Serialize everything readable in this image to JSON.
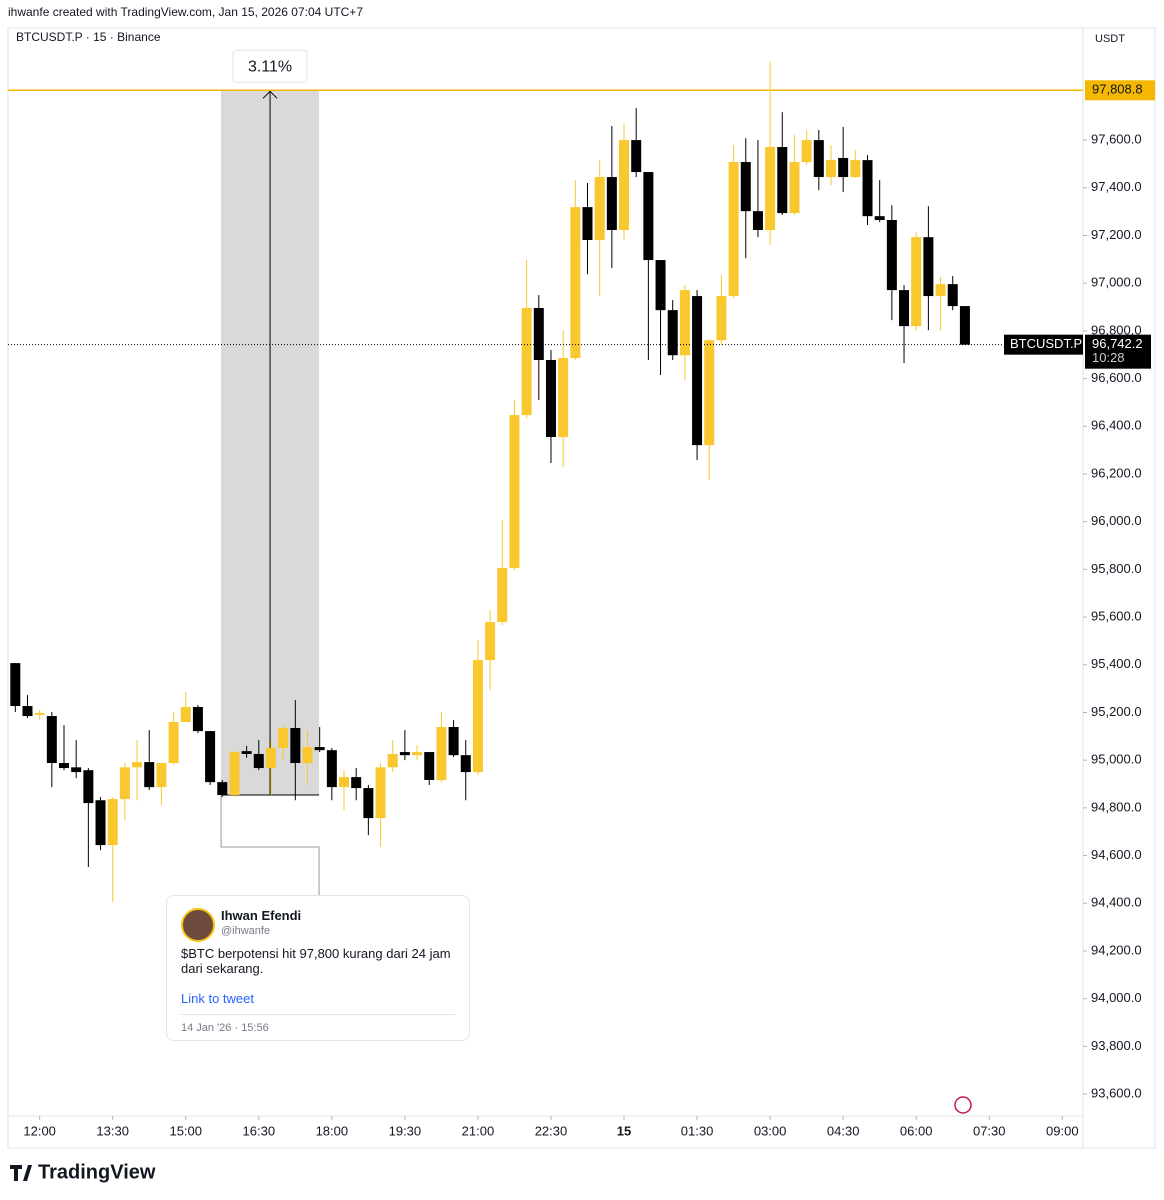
{
  "chart_data": {
    "type": "candlestick",
    "attribution": "ihwanfe created with TradingView.com, Jan 15, 2026 07:04 UTC+7",
    "title": "BTCUSDT.P · 15 · Binance",
    "currency": "USDT",
    "brand": "TradingView",
    "up_color": "#F9C72E",
    "down_color": "#000000",
    "open": [
      95407,
      95227,
      95190,
      95185,
      94988,
      94970,
      94958,
      94832,
      94644,
      94837,
      94970,
      94992,
      94887,
      94988,
      95160,
      95223,
      95122,
      94908,
      94854,
      95038,
      95026,
      94967,
      95051,
      95135,
      94988,
      95055,
      95042,
      94887,
      94929,
      94883,
      94757,
      94970,
      95034,
      95021,
      95034,
      94917,
      95139,
      95021,
      94950,
      95420,
      95579,
      95806,
      96447,
      96896,
      96678,
      96355,
      96686,
      97319,
      97181,
      97445,
      97223,
      97600,
      97466,
      97097,
      96887,
      96698,
      96946,
      96321,
      96761,
      96946,
      97508,
      97302,
      97223,
      97571,
      97294,
      97508,
      97600,
      97445,
      97525,
      97445,
      97516,
      97281,
      97265,
      96971,
      96820,
      97193,
      96946,
      96996,
      96904
    ],
    "high": [
      95407,
      95273,
      95210,
      95202,
      95147,
      95084,
      94967,
      94845,
      94845,
      94988,
      95084,
      95126,
      94988,
      95202,
      95286,
      95231,
      95122,
      94917,
      95042,
      95060,
      95084,
      95084,
      95147,
      95252,
      95126,
      95139,
      95051,
      94958,
      94967,
      94896,
      94988,
      95084,
      95126,
      95063,
      95034,
      95202,
      95168,
      95084,
      95504,
      95629,
      96007,
      96510,
      97097,
      96950,
      96720,
      96803,
      97432,
      97420,
      97516,
      97659,
      97667,
      97734,
      97466,
      97097,
      96929,
      96992,
      96971,
      96761,
      97034,
      97579,
      97608,
      97600,
      97927,
      97717,
      97621,
      97642,
      97642,
      97579,
      97655,
      97558,
      97537,
      97432,
      97327,
      96992,
      97214,
      97323,
      97026,
      97030,
      96904
    ],
    "low": [
      95202,
      95177,
      95170,
      94887,
      94958,
      94925,
      94552,
      94623,
      94405,
      94749,
      94832,
      94875,
      94812,
      94980,
      95160,
      95114,
      94896,
      94845,
      94845,
      95010,
      94958,
      94854,
      95000,
      94832,
      94896,
      95034,
      94832,
      94791,
      94832,
      94686,
      94636,
      94950,
      95000,
      95000,
      94896,
      94908,
      95013,
      94832,
      94938,
      95294,
      95567,
      95797,
      96434,
      96510,
      96246,
      96229,
      96678,
      97038,
      96946,
      97063,
      97181,
      97445,
      96678,
      96615,
      96678,
      96594,
      96258,
      96175,
      96740,
      96937,
      97105,
      97193,
      97160,
      97286,
      97286,
      97495,
      97390,
      97411,
      97382,
      97441,
      97244,
      97256,
      96845,
      96665,
      96803,
      96803,
      96803,
      96887,
      96742
    ],
    "close": [
      95227,
      95185,
      95198,
      94988,
      94967,
      94950,
      94820,
      94644,
      94837,
      94970,
      94992,
      94887,
      94988,
      95160,
      95223,
      95122,
      94908,
      94854,
      95034,
      95026,
      94967,
      95051,
      95135,
      94988,
      95055,
      95042,
      94887,
      94929,
      94883,
      94757,
      94970,
      95026,
      95021,
      95034,
      94917,
      95139,
      95021,
      94950,
      95420,
      95579,
      95806,
      96447,
      96896,
      96678,
      96355,
      96686,
      97319,
      97181,
      97445,
      97223,
      97600,
      97466,
      97097,
      96887,
      96698,
      96971,
      96321,
      96761,
      96946,
      97508,
      97302,
      97223,
      97571,
      97294,
      97508,
      97600,
      97445,
      97516,
      97445,
      97516,
      97281,
      97265,
      96971,
      96820,
      97193,
      96946,
      96996,
      96904,
      96742.2
    ],
    "xlim": [
      -0.6,
      87.7
    ],
    "xticks": [
      {
        "value": 2,
        "label": "12:00"
      },
      {
        "value": 8,
        "label": "13:30"
      },
      {
        "value": 14,
        "label": "15:00"
      },
      {
        "value": 20,
        "label": "16:30"
      },
      {
        "value": 26,
        "label": "18:00"
      },
      {
        "value": 32,
        "label": "19:30"
      },
      {
        "value": 38,
        "label": "21:00"
      },
      {
        "value": 44,
        "label": "22:30"
      },
      {
        "value": 50,
        "label": "15"
      },
      {
        "value": 56,
        "label": "01:30"
      },
      {
        "value": 62,
        "label": "03:00"
      },
      {
        "value": 68,
        "label": "04:30"
      },
      {
        "value": 74,
        "label": "06:00"
      },
      {
        "value": 80,
        "label": "07:30"
      },
      {
        "value": 86,
        "label": "09:00"
      }
    ],
    "ylim": [
      93508,
      98070
    ],
    "yticks": [
      {
        "value": 93600,
        "label": "93,600.0"
      },
      {
        "value": 93800,
        "label": "93,800.0"
      },
      {
        "value": 94000,
        "label": "94,000.0"
      },
      {
        "value": 94200,
        "label": "94,200.0"
      },
      {
        "value": 94400,
        "label": "94,400.0"
      },
      {
        "value": 94600,
        "label": "94,600.0"
      },
      {
        "value": 94800,
        "label": "94,800.0"
      },
      {
        "value": 95000,
        "label": "95,000.0"
      },
      {
        "value": 95200,
        "label": "95,200.0"
      },
      {
        "value": 95400,
        "label": "95,400.0"
      },
      {
        "value": 95600,
        "label": "95,600.0"
      },
      {
        "value": 95800,
        "label": "95,800.0"
      },
      {
        "value": 96000,
        "label": "96,000.0"
      },
      {
        "value": 96200,
        "label": "96,200.0"
      },
      {
        "value": 96400,
        "label": "96,400.0"
      },
      {
        "value": 96600,
        "label": "96,600.0"
      },
      {
        "value": 96800,
        "label": "96,800.0"
      },
      {
        "value": 97000,
        "label": "97,000.0"
      },
      {
        "value": 97200,
        "label": "97,200.0"
      },
      {
        "value": 97400,
        "label": "97,400.0"
      },
      {
        "value": 97600,
        "label": "97,600.0"
      }
    ],
    "target_line": {
      "value": 97808.8,
      "label": "97,808.8",
      "color": "#F5B700"
    },
    "last_price": {
      "value": 96742.2,
      "label": "96,742.2",
      "name": "BTCUSDT.P",
      "countdown": "10:28"
    },
    "measure": {
      "label": "3.11%",
      "from": 94854,
      "to": 97808.8,
      "start": 16.9,
      "end": 24.95
    },
    "tweet": {
      "name": "Ihwan Efendi",
      "handle": "@ihwanfe",
      "text": "$BTC berpotensi hit 97,800 kurang dari 24 jam dari sekarang.",
      "link": "Link to tweet",
      "date": "14 Jan '26 · 15:56"
    }
  }
}
